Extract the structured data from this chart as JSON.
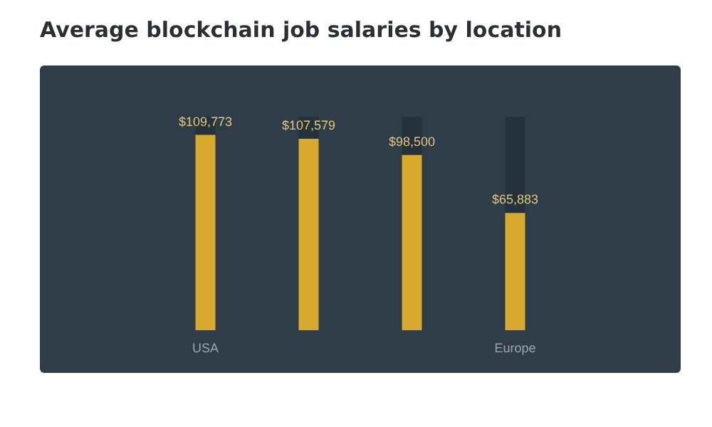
{
  "chart_data": {
    "type": "bar",
    "title": "Average blockchain job salaries by location",
    "categories": [
      "USA",
      null,
      null,
      "Europe"
    ],
    "values": [
      109773,
      107579,
      98500,
      65883
    ],
    "value_labels": [
      "$109,773",
      "$107,579",
      "$98,500",
      "$65,883"
    ],
    "color": "#d9a92e"
  }
}
